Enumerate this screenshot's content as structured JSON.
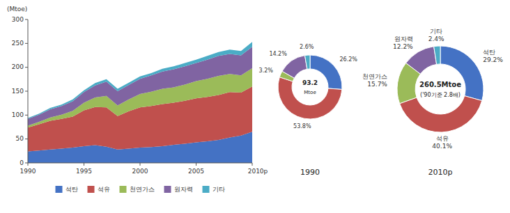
{
  "chart_data": [
    {
      "type": "area",
      "stacked": true,
      "legend": "bottom",
      "grid": false,
      "ylabel": "(Mtoe)",
      "x": [
        1990,
        1991,
        1992,
        1993,
        1994,
        1995,
        1996,
        1997,
        1998,
        1999,
        2000,
        2001,
        2002,
        2003,
        2004,
        2005,
        2006,
        2007,
        2008,
        2009,
        2010
      ],
      "xlim": [
        1990,
        2010
      ],
      "xticks": [
        1990,
        1995,
        2000,
        2005,
        {
          "value": 2010,
          "label": "2010p"
        }
      ],
      "ylim": [
        0,
        300
      ],
      "yticks": [
        0,
        50,
        100,
        150,
        200,
        250,
        300
      ],
      "series": [
        {
          "name": "석탄",
          "color": "#4472C4",
          "values": [
            24,
            26,
            28,
            30,
            32,
            35,
            37,
            34,
            28,
            30,
            32,
            33,
            35,
            38,
            40,
            43,
            45,
            48,
            53,
            57,
            65
          ]
        },
        {
          "name": "석유",
          "color": "#C0504D",
          "values": [
            50,
            55,
            60,
            62,
            65,
            75,
            80,
            82,
            70,
            78,
            84,
            86,
            88,
            88,
            90,
            92,
            93,
            94,
            95,
            90,
            95
          ]
        },
        {
          "name": "천연가스",
          "color": "#9BBB59",
          "values": [
            4,
            5,
            7,
            9,
            12,
            16,
            20,
            24,
            22,
            25,
            28,
            30,
            32,
            32,
            34,
            36,
            38,
            40,
            38,
            36,
            38
          ]
        },
        {
          "name": "원자력",
          "color": "#8064A2",
          "values": [
            14,
            15,
            17,
            18,
            20,
            22,
            25,
            30,
            30,
            30,
            32,
            34,
            36,
            38,
            38,
            38,
            40,
            42,
            42,
            42,
            45
          ]
        },
        {
          "name": "기타",
          "color": "#4BACC6",
          "values": [
            2,
            2,
            3,
            3,
            4,
            4,
            5,
            5,
            5,
            5,
            5,
            5,
            6,
            6,
            7,
            7,
            8,
            8,
            9,
            9,
            10
          ]
        }
      ]
    },
    {
      "type": "donut",
      "title": "1990",
      "data_labels": true,
      "annotations": [
        "93.2",
        "Mtoe"
      ],
      "values": [
        26.2,
        53.8,
        3.2,
        14.2,
        2.6
      ],
      "value_labels": [
        "26.2%",
        "53.8%",
        "3.2%",
        "14.2%",
        "2.6%"
      ],
      "colors": [
        "#4472C4",
        "#C0504D",
        "#9BBB59",
        "#8064A2",
        "#4BACC6"
      ]
    },
    {
      "type": "donut",
      "title": "2010p",
      "data_labels": true,
      "annotations": [
        "260.5Mtoe",
        "('90기준 2.8배)"
      ],
      "categories": [
        "석탄",
        "석유",
        "천연가스",
        "원자력",
        "기타"
      ],
      "values": [
        29.2,
        40.1,
        15.7,
        12.2,
        2.4
      ],
      "value_labels": [
        "29.2%",
        "40.1%",
        "15.7%",
        "12.2%",
        "2.4%"
      ],
      "colors": [
        "#4472C4",
        "#C0504D",
        "#9BBB59",
        "#8064A2",
        "#4BACC6"
      ]
    }
  ]
}
